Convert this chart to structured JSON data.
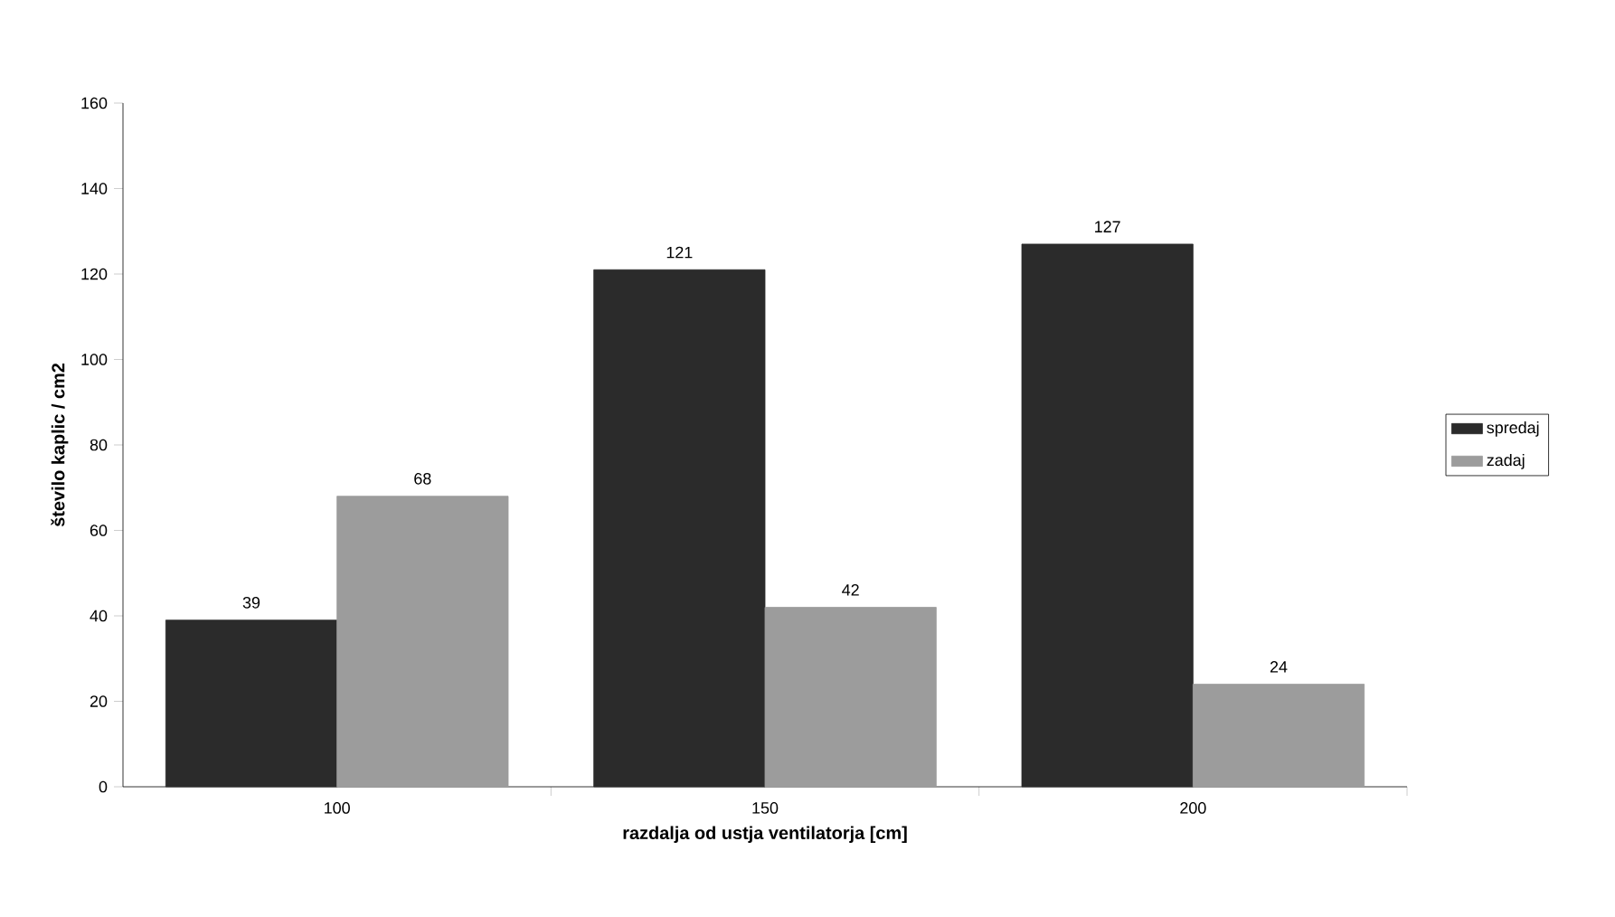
{
  "chart_data": {
    "type": "bar",
    "xlabel": "razdalja od ustja ventilatorja [cm]",
    "ylabel": "število kaplic / cm2",
    "categories": [
      "100",
      "150",
      "200"
    ],
    "series": [
      {
        "name": "spredaj",
        "color": "#2b2b2b",
        "values": [
          39,
          121,
          127
        ]
      },
      {
        "name": "zadaj",
        "color": "#9c9c9c",
        "values": [
          68,
          42,
          24
        ]
      }
    ],
    "ylim": [
      0,
      160
    ],
    "yticks": [
      0,
      20,
      40,
      60,
      80,
      100,
      120,
      140,
      160
    ],
    "data_labels": true,
    "legend": "right",
    "grid": false
  }
}
